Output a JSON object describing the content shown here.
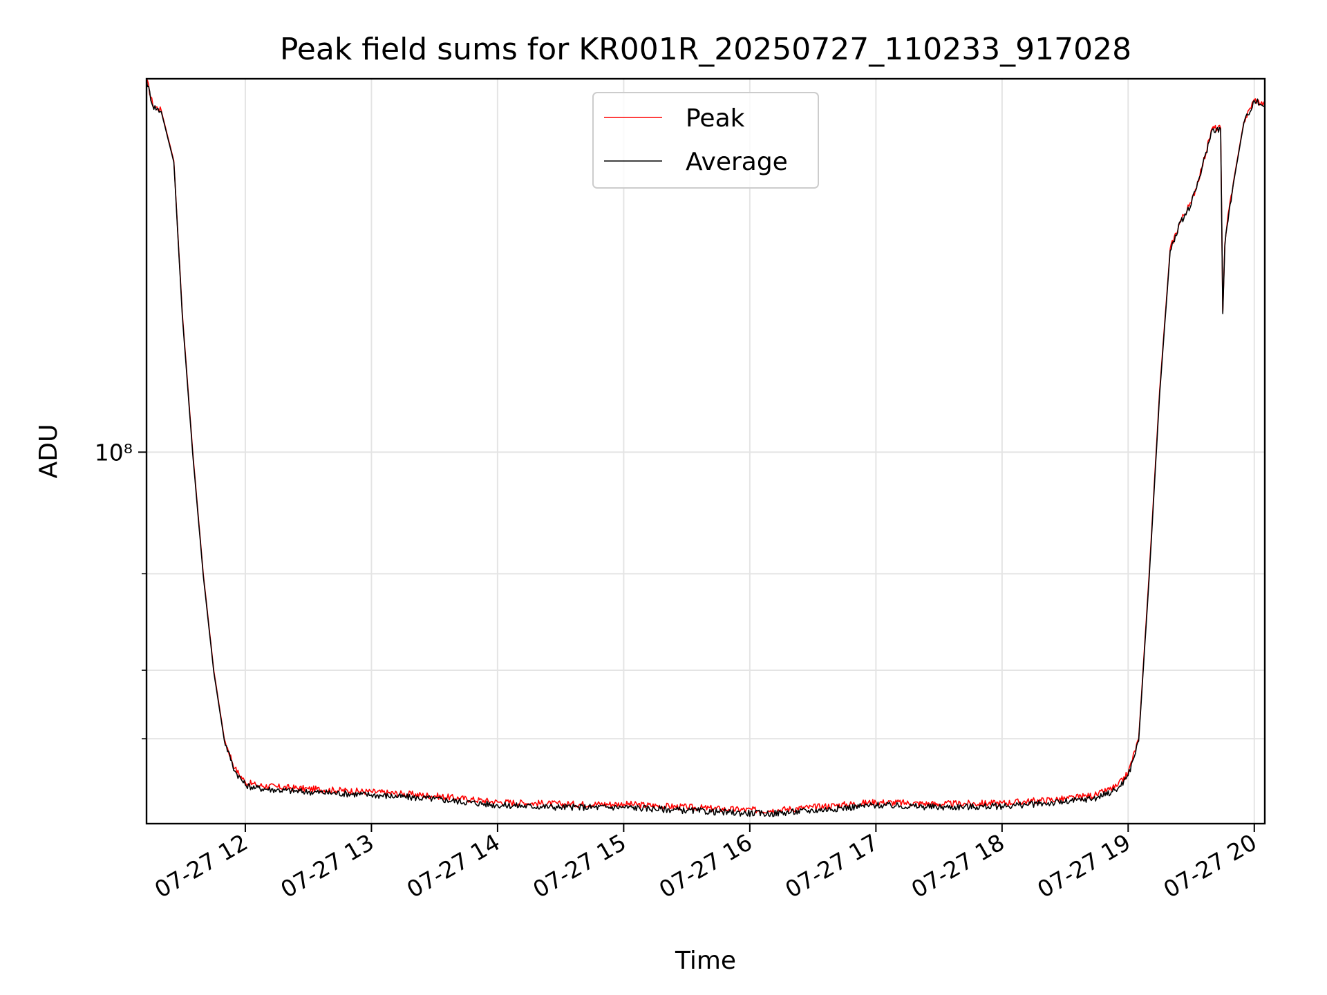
{
  "chart_data": {
    "type": "line",
    "title": "Peak field sums for KR001R_20250727_110233_917028",
    "xlabel": "Time",
    "ylabel": "ADU",
    "y_scale": "log",
    "y_tick_major_label": "10⁸",
    "y_tick_major_value": 100000000,
    "y_minor_ticks": [
      30000000,
      40000000,
      60000000
    ],
    "xlim": [
      "2025-07-27 11:13",
      "2025-07-27 20:05"
    ],
    "ylim": [
      21000000,
      480000000
    ],
    "x_tick_labels": [
      "07-27 12",
      "07-27 13",
      "07-27 14",
      "07-27 15",
      "07-27 16",
      "07-27 17",
      "07-27 18",
      "07-27 19",
      "07-27 20"
    ],
    "x_ticks": [
      "2025-07-27 12:00",
      "2025-07-27 13:00",
      "2025-07-27 14:00",
      "2025-07-27 15:00",
      "2025-07-27 16:00",
      "2025-07-27 17:00",
      "2025-07-27 18:00",
      "2025-07-27 19:00",
      "2025-07-27 20:00"
    ],
    "grid": true,
    "legend_position": "upper center",
    "series": [
      {
        "name": "Peak",
        "color": "#ff0000",
        "x": [
          "2025-07-27 11:13",
          "2025-07-27 11:16",
          "2025-07-27 11:20",
          "2025-07-27 11:26",
          "2025-07-27 11:30",
          "2025-07-27 11:35",
          "2025-07-27 11:40",
          "2025-07-27 11:45",
          "2025-07-27 11:50",
          "2025-07-27 11:55",
          "2025-07-27 12:00",
          "2025-07-27 12:05",
          "2025-07-27 12:15",
          "2025-07-27 12:30",
          "2025-07-27 13:00",
          "2025-07-27 13:30",
          "2025-07-27 14:00",
          "2025-07-27 14:30",
          "2025-07-27 15:00",
          "2025-07-27 15:30",
          "2025-07-27 15:50",
          "2025-07-27 16:10",
          "2025-07-27 16:30",
          "2025-07-27 17:00",
          "2025-07-27 17:30",
          "2025-07-27 18:00",
          "2025-07-27 18:30",
          "2025-07-27 18:45",
          "2025-07-27 18:55",
          "2025-07-27 19:00",
          "2025-07-27 19:05",
          "2025-07-27 19:10",
          "2025-07-27 19:15",
          "2025-07-27 19:20",
          "2025-07-27 19:25",
          "2025-07-27 19:30",
          "2025-07-27 19:35",
          "2025-07-27 19:40",
          "2025-07-27 19:44",
          "2025-07-27 19:45",
          "2025-07-27 19:46",
          "2025-07-27 19:47",
          "2025-07-27 19:50",
          "2025-07-27 19:55",
          "2025-07-27 20:00",
          "2025-07-27 20:05"
        ],
        "y": [
          480000000,
          430000000,
          420000000,
          340000000,
          180000000,
          100000000,
          60000000,
          40000000,
          30000000,
          26500000,
          25000000,
          24700000,
          24500000,
          24300000,
          24000000,
          23600000,
          23000000,
          22800000,
          22800000,
          22500000,
          22300000,
          22200000,
          22500000,
          23000000,
          22800000,
          22900000,
          23300000,
          23700000,
          24600000,
          26000000,
          30000000,
          60000000,
          130000000,
          235000000,
          265000000,
          285000000,
          330000000,
          390000000,
          390000000,
          180000000,
          240000000,
          260000000,
          310000000,
          400000000,
          440000000,
          430000000
        ]
      },
      {
        "name": "Average",
        "color": "#000000",
        "x": [
          "2025-07-27 11:13",
          "2025-07-27 11:16",
          "2025-07-27 11:20",
          "2025-07-27 11:26",
          "2025-07-27 11:30",
          "2025-07-27 11:35",
          "2025-07-27 11:40",
          "2025-07-27 11:45",
          "2025-07-27 11:50",
          "2025-07-27 11:55",
          "2025-07-27 12:00",
          "2025-07-27 12:05",
          "2025-07-27 12:15",
          "2025-07-27 12:30",
          "2025-07-27 13:00",
          "2025-07-27 13:30",
          "2025-07-27 14:00",
          "2025-07-27 14:30",
          "2025-07-27 15:00",
          "2025-07-27 15:30",
          "2025-07-27 15:50",
          "2025-07-27 16:10",
          "2025-07-27 16:30",
          "2025-07-27 17:00",
          "2025-07-27 17:30",
          "2025-07-27 18:00",
          "2025-07-27 18:30",
          "2025-07-27 18:45",
          "2025-07-27 18:55",
          "2025-07-27 19:00",
          "2025-07-27 19:05",
          "2025-07-27 19:10",
          "2025-07-27 19:15",
          "2025-07-27 19:20",
          "2025-07-27 19:25",
          "2025-07-27 19:30",
          "2025-07-27 19:35",
          "2025-07-27 19:40",
          "2025-07-27 19:44",
          "2025-07-27 19:45",
          "2025-07-27 19:46",
          "2025-07-27 19:47",
          "2025-07-27 19:50",
          "2025-07-27 19:55",
          "2025-07-27 20:00",
          "2025-07-27 20:05"
        ],
        "y": [
          478000000,
          428000000,
          418000000,
          338000000,
          178000000,
          99000000,
          59500000,
          39700000,
          29800000,
          26200000,
          24700000,
          24400000,
          24200000,
          24000000,
          23700000,
          23300000,
          22700000,
          22500000,
          22500000,
          22200000,
          22000000,
          21900000,
          22200000,
          22700000,
          22500000,
          22600000,
          23000000,
          23400000,
          24300000,
          25700000,
          29700000,
          59000000,
          128000000,
          233000000,
          263000000,
          283000000,
          328000000,
          388000000,
          388000000,
          179000000,
          238000000,
          258000000,
          308000000,
          398000000,
          438000000,
          428000000
        ]
      }
    ]
  }
}
